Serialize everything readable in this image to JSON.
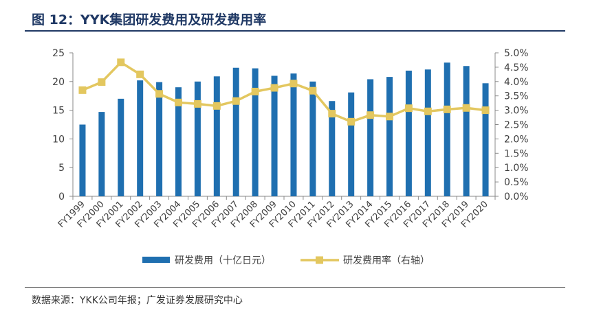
{
  "header": {
    "title": "图 12：YYK集团研发费用及研发费用率"
  },
  "footer": {
    "source": "数据来源：YKK公司年报；广发证券发展研究中心"
  },
  "chart_data": {
    "type": "bar",
    "categories": [
      "FY1999",
      "FY2000",
      "FY2001",
      "FY2002",
      "FY2003",
      "FY2004",
      "FY2005",
      "FY2006",
      "FY2007",
      "FY2008",
      "FY2009",
      "FY2010",
      "FY2011",
      "FY2012",
      "FY2013",
      "FY2014",
      "FY2015",
      "FY2016",
      "FY2017",
      "FY2018",
      "FY2019",
      "FY2020"
    ],
    "series": [
      {
        "name": "研发费用（十亿日元）",
        "type": "bar",
        "axis": "left",
        "color": "#1f6fb0",
        "values": [
          12.5,
          14.7,
          17.0,
          20.2,
          19.9,
          19.0,
          20.0,
          20.9,
          22.4,
          22.3,
          21.0,
          21.4,
          20.0,
          16.6,
          18.1,
          20.4,
          20.8,
          21.9,
          22.1,
          23.3,
          22.7,
          19.7
        ]
      },
      {
        "name": "研发费用率（右轴）",
        "type": "line",
        "axis": "right",
        "color": "#e3c75f",
        "values": [
          3.7,
          3.98,
          4.67,
          4.25,
          3.57,
          3.27,
          3.22,
          3.15,
          3.32,
          3.65,
          3.78,
          3.93,
          3.68,
          2.88,
          2.6,
          2.83,
          2.78,
          3.07,
          2.96,
          3.03,
          3.08,
          3.0
        ]
      }
    ],
    "y_left": {
      "min": 0,
      "max": 25,
      "ticks": [
        "0",
        "5",
        "10",
        "15",
        "20",
        "25"
      ]
    },
    "y_right": {
      "min": 0,
      "max": 5,
      "ticks": [
        "0.0%",
        "0.5%",
        "1.0%",
        "1.5%",
        "2.0%",
        "2.5%",
        "3.0%",
        "3.5%",
        "4.0%",
        "4.5%",
        "5.0%"
      ]
    },
    "grid": false,
    "legend_position": "bottom"
  }
}
